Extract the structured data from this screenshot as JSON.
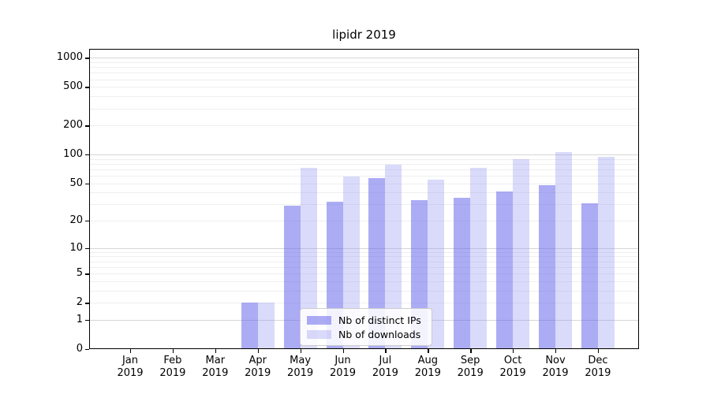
{
  "title": "lipidr 2019",
  "chart_data": {
    "type": "bar",
    "title": "lipidr 2019",
    "categories": [
      "Jan 2019",
      "Feb 2019",
      "Mar 2019",
      "Apr 2019",
      "May 2019",
      "Jun 2019",
      "Jul 2019",
      "Aug 2019",
      "Sep 2019",
      "Oct 2019",
      "Nov 2019",
      "Dec 2019"
    ],
    "series": [
      {
        "name": "Nb of distinct IPs",
        "color": "rgba(103,103,235,0.55)",
        "values": [
          0,
          0,
          0,
          2,
          29,
          32,
          57,
          33,
          35,
          41,
          48,
          31
        ]
      },
      {
        "name": "Nb of downloads",
        "color": "rgba(150,150,240,0.35)",
        "values": [
          0,
          0,
          0,
          2,
          72,
          59,
          79,
          55,
          73,
          90,
          105,
          95
        ]
      }
    ],
    "yscale": "log10(1+v)",
    "ylim": [
      0,
      1240
    ],
    "yticks": [
      0,
      1,
      2,
      5,
      10,
      20,
      50,
      100,
      200,
      500,
      1000
    ],
    "grid": "major+minor horizontal",
    "legend_position": "lower center",
    "colors": {
      "bar_distinct_ips": "rgba(103,103,235,0.55)",
      "bar_downloads": "rgba(150,150,240,0.35)",
      "grid_major": "#d6d6d6",
      "grid_minor": "#efefef",
      "axis": "#000000"
    }
  }
}
